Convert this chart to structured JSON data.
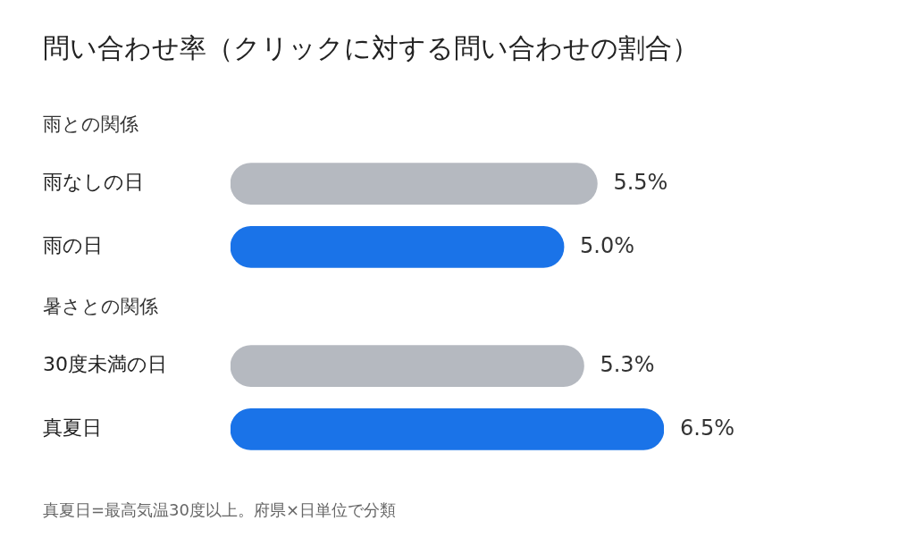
{
  "chart_data": [
    {
      "type": "bar",
      "orientation": "horizontal",
      "title": "問い合わせ率（クリックに対する問い合わせの割合）",
      "subtitle": "雨との関係",
      "categories": [
        "雨なしの日",
        "雨の日"
      ],
      "values": [
        5.5,
        5.0
      ],
      "colors": [
        "#b5b9c0",
        "#1a73e8"
      ],
      "value_labels": [
        "5.5%",
        "5.0%"
      ],
      "legend": false
    },
    {
      "type": "bar",
      "orientation": "horizontal",
      "subtitle": "暑さとの関係",
      "categories": [
        "30度未満の日",
        "真夏日"
      ],
      "values": [
        5.3,
        6.5
      ],
      "colors": [
        "#b5b9c0",
        "#1a73e8"
      ],
      "value_labels": [
        "5.3%",
        "6.5%"
      ],
      "legend": false,
      "annotations": [
        "真夏日=最高気温30度以上。府県×日単位で分類"
      ]
    }
  ]
}
